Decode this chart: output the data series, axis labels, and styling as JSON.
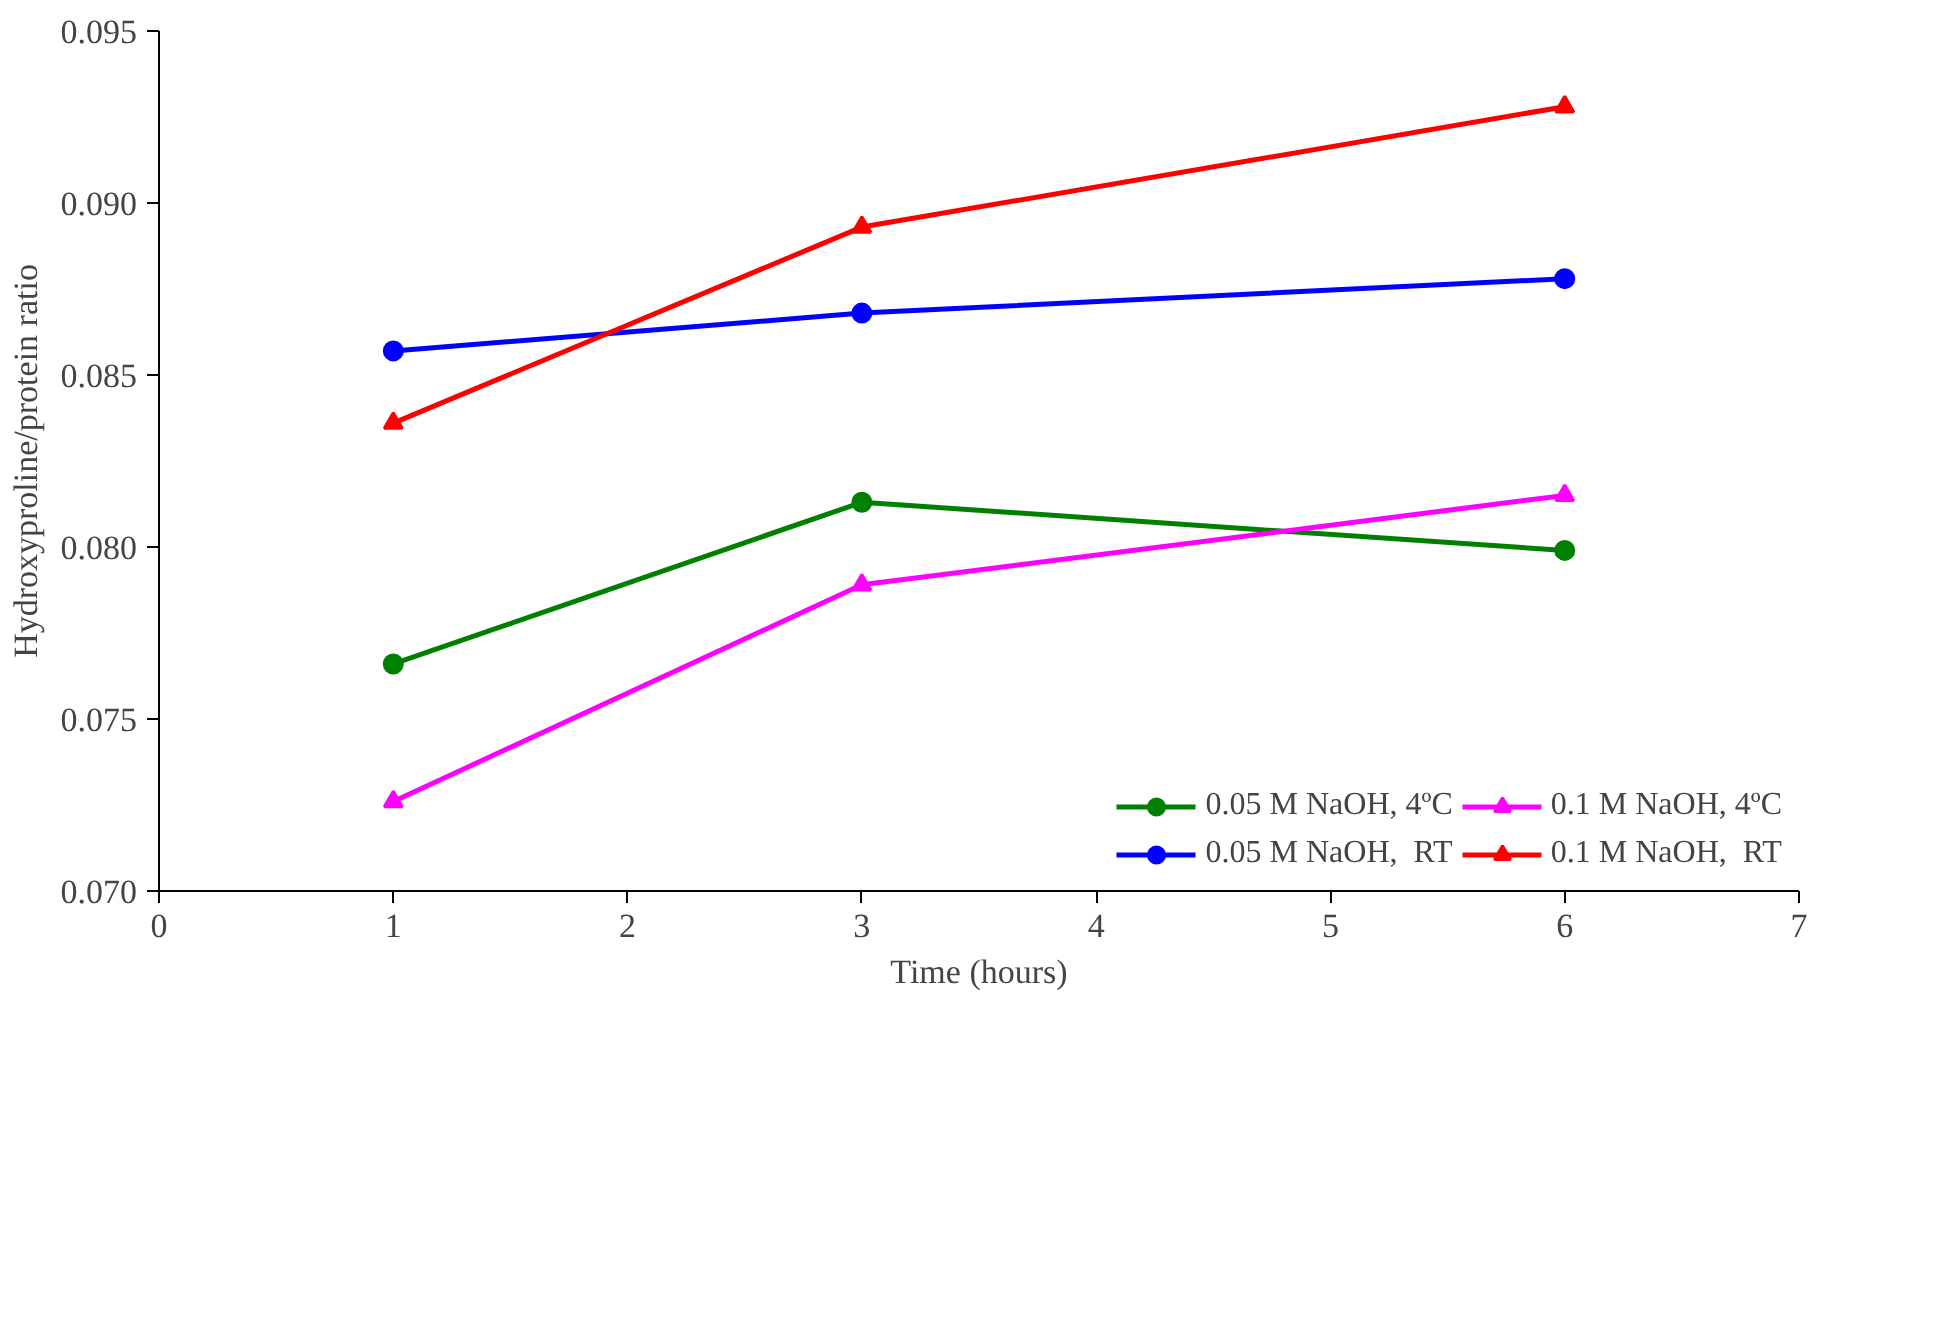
{
  "chart_data": {
    "type": "line",
    "xlabel": "Time (hours)",
    "ylabel": "Hydroxyproline/protein ratio",
    "x": [
      1,
      3,
      6
    ],
    "series": [
      {
        "name": "0.05 M NaOH, 4ºC",
        "color": "#008000",
        "marker": "circle",
        "values": [
          0.0766,
          0.0813,
          0.0799
        ]
      },
      {
        "name": "0.05 M NaOH,  RT",
        "color": "#0000ff",
        "marker": "circle",
        "values": [
          0.0857,
          0.0868,
          0.0878
        ]
      },
      {
        "name": "0.1 M NaOH, 4ºC",
        "color": "#ff00ff",
        "marker": "triangle",
        "values": [
          0.0726,
          0.0789,
          0.0815
        ]
      },
      {
        "name": "0.1 M NaOH,  RT",
        "color": "#ff0000",
        "marker": "triangle",
        "values": [
          0.0836,
          0.0893,
          0.0928
        ]
      }
    ],
    "xlim": [
      0,
      7
    ],
    "xticks": [
      0,
      1,
      2,
      3,
      4,
      5,
      6,
      7
    ],
    "ylim": [
      0.07,
      0.095
    ],
    "yticks": [
      {
        "value": 0.07,
        "label": "0.070"
      },
      {
        "value": 0.075,
        "label": "0.075"
      },
      {
        "value": 0.08,
        "label": "0.080"
      },
      {
        "value": 0.085,
        "label": "0.085"
      },
      {
        "value": 0.09,
        "label": "0.090"
      },
      {
        "value": 0.095,
        "label": "0.095"
      }
    ],
    "grid": false,
    "legend": "bottom right",
    "line_style": "solid"
  }
}
